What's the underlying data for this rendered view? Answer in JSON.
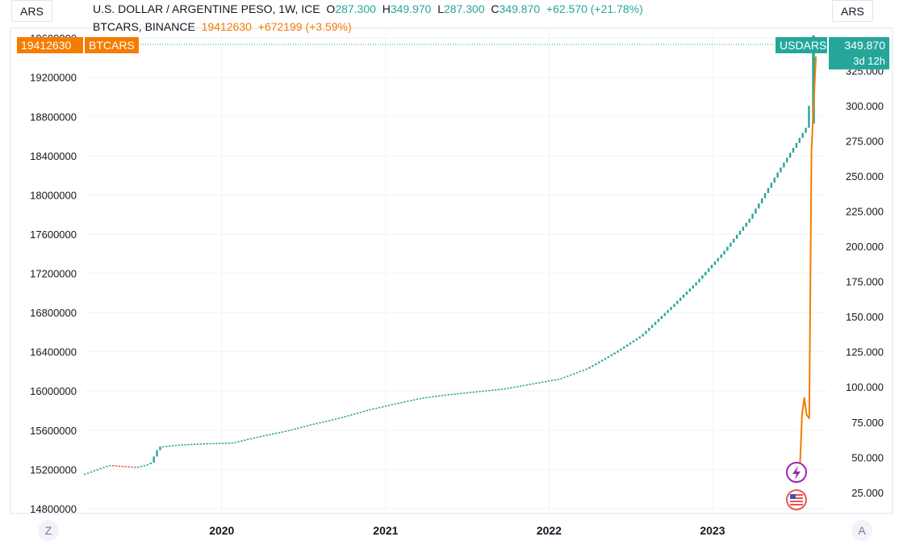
{
  "header": {
    "main_symbol": "U.S. DOLLAR / ARGENTINE PESO, 1W, ICE",
    "o_label": "O",
    "o_value": "287.300",
    "h_label": "H",
    "h_value": "349.970",
    "l_label": "L",
    "l_value": "287.300",
    "c_label": "C",
    "c_value": "349.870",
    "change": "+62.570 (+21.78%)",
    "compare_symbol": "BTCARS, BINANCE",
    "compare_value": "19412630",
    "compare_change": "+672199 (+3.59%)"
  },
  "left_unit_button": "ARS",
  "right_unit_button": "ARS",
  "left_price_tag": {
    "value": "19412630",
    "label": "BTCARS"
  },
  "right_price_tag": {
    "label": "USDARS",
    "value": "349.870",
    "countdown": "3d 12h"
  },
  "corner_left_button": "Z",
  "corner_right_button": "A",
  "event_icons": [
    "lightning-icon",
    "us-flag-icon"
  ],
  "colors": {
    "usd_series": "#26a69a",
    "btc_series": "#f57c00",
    "down_candle": "#ef5350",
    "grid": "#f0f3fa"
  },
  "chart_data": {
    "type": "line",
    "title": "U.S. DOLLAR / ARGENTINE PESO, 1W, ICE",
    "xlabel": "",
    "ylabel": "",
    "x_ticks": [
      "2020",
      "2021",
      "2022",
      "2023"
    ],
    "left_axis": {
      "ticks": [
        "19600000",
        "19200000",
        "18800000",
        "18400000",
        "18000000",
        "17600000",
        "17200000",
        "16800000",
        "16400000",
        "16000000",
        "15600000",
        "15200000",
        "14800000"
      ],
      "range": [
        14750000,
        19700000
      ]
    },
    "right_axis": {
      "ticks": [
        "325.000",
        "300.000",
        "275.000",
        "250.000",
        "225.000",
        "200.000",
        "175.000",
        "150.000",
        "125.000",
        "100.000",
        "75.000",
        "50.000",
        "25.000"
      ],
      "range": [
        10,
        355
      ]
    },
    "series": [
      {
        "name": "USDARS",
        "axis": "right",
        "style": "candles",
        "points": [
          [
            "2019-03-01",
            37.5
          ],
          [
            "2019-05-01",
            44.5
          ],
          [
            "2019-07-01",
            43.0
          ],
          [
            "2019-08-01",
            45.5
          ],
          [
            "2019-08-20",
            57.5
          ],
          [
            "2019-10-01",
            59.0
          ],
          [
            "2019-12-01",
            60.0
          ],
          [
            "2020-02-01",
            60.5
          ],
          [
            "2020-04-01",
            65.0
          ],
          [
            "2020-06-01",
            69.0
          ],
          [
            "2020-08-01",
            74.0
          ],
          [
            "2020-10-01",
            78.5
          ],
          [
            "2020-12-01",
            84.0
          ],
          [
            "2021-02-01",
            88.5
          ],
          [
            "2021-04-01",
            92.5
          ],
          [
            "2021-06-01",
            95.0
          ],
          [
            "2021-08-01",
            97.0
          ],
          [
            "2021-10-01",
            99.0
          ],
          [
            "2021-12-01",
            102.5
          ],
          [
            "2022-02-01",
            106.0
          ],
          [
            "2022-04-01",
            113.0
          ],
          [
            "2022-06-01",
            124.0
          ],
          [
            "2022-08-01",
            136.5
          ],
          [
            "2022-10-01",
            155.0
          ],
          [
            "2022-12-01",
            174.0
          ],
          [
            "2023-02-01",
            196.0
          ],
          [
            "2023-04-01",
            220.0
          ],
          [
            "2023-06-01",
            252.0
          ],
          [
            "2023-07-15",
            274.0
          ],
          [
            "2023-08-10",
            287.3
          ],
          [
            "2023-08-15",
            349.87
          ]
        ]
      },
      {
        "name": "BTCARS",
        "axis": "left",
        "style": "line",
        "points": [
          [
            "2023-06-25",
            15230000
          ],
          [
            "2023-07-10",
            15100000
          ],
          [
            "2023-07-15",
            15210000
          ],
          [
            "2023-07-20",
            15760000
          ],
          [
            "2023-07-25",
            15930000
          ],
          [
            "2023-07-30",
            15760000
          ],
          [
            "2023-08-05",
            15720000
          ],
          [
            "2023-08-10",
            18450000
          ],
          [
            "2023-08-20",
            19412630
          ]
        ]
      }
    ]
  }
}
